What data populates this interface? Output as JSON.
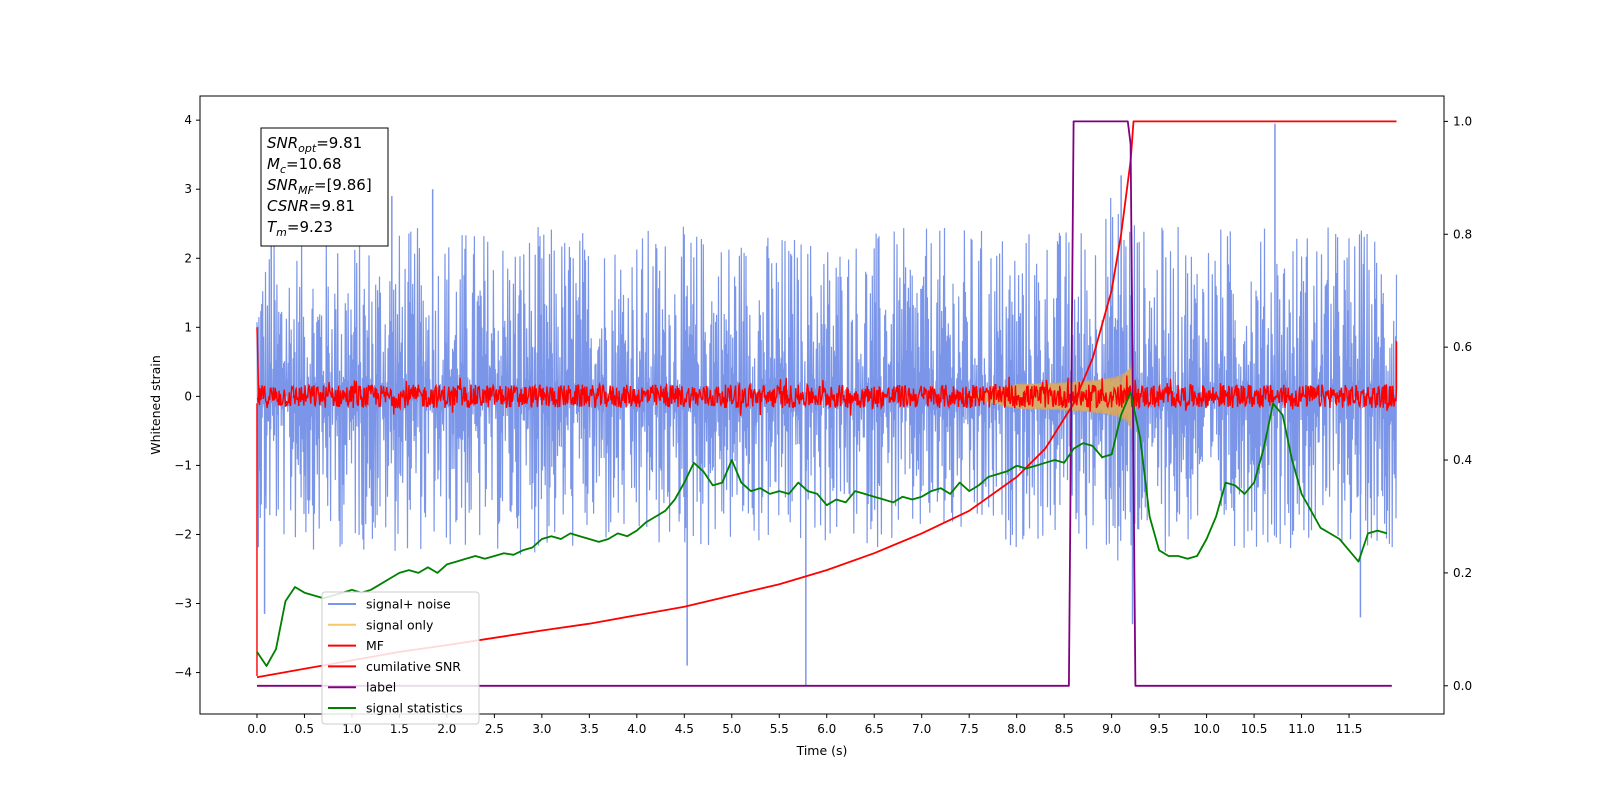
{
  "chart_data": {
    "type": "line",
    "xlabel": "Time (s)",
    "ylabel": "Whitened strain",
    "xlim": [
      -0.6,
      12.5
    ],
    "ylim": [
      -4.6,
      4.35
    ],
    "y2lim": [
      -0.05,
      1.045
    ],
    "xticks": [
      0.0,
      0.5,
      1.0,
      1.5,
      2.0,
      2.5,
      3.0,
      3.5,
      4.0,
      4.5,
      5.0,
      5.5,
      6.0,
      6.5,
      7.0,
      7.5,
      8.0,
      8.5,
      9.0,
      9.5,
      10.0,
      10.5,
      11.0,
      11.5
    ],
    "xtick_labels": [
      "0.0",
      "0.5",
      "1.0",
      "1.5",
      "2.0",
      "2.5",
      "3.0",
      "3.5",
      "4.0",
      "4.5",
      "5.0",
      "5.5",
      "6.0",
      "6.5",
      "7.0",
      "7.5",
      "8.0",
      "8.5",
      "9.0",
      "9.5",
      "10.0",
      "10.5",
      "11.0",
      "11.5"
    ],
    "yticks": [
      -4,
      -3,
      -2,
      -1,
      0,
      1,
      2,
      3,
      4
    ],
    "ytick_labels": [
      "−4",
      "−3",
      "−2",
      "−1",
      "0",
      "1",
      "2",
      "3",
      "4"
    ],
    "y2ticks": [
      0.0,
      0.2,
      0.4,
      0.6,
      0.8,
      1.0
    ],
    "y2tick_labels": [
      "0.0",
      "0.2",
      "0.4",
      "0.6",
      "0.8",
      "1.0"
    ],
    "legend_position": "lower-left",
    "grid": false,
    "annotation": {
      "lines": [
        {
          "base": "SNR",
          "sub": "opt",
          "value": "=9.81"
        },
        {
          "base": "M",
          "sub": "c",
          "value": "=10.68"
        },
        {
          "base": "SNR",
          "sub": "MF",
          "value": "=[9.86]"
        },
        {
          "base": "CSNR",
          "sub": "",
          "value": "=9.81"
        },
        {
          "base": "T",
          "sub": "m",
          "value": "=9.23"
        }
      ]
    },
    "series": [
      {
        "name": "signal+ noise",
        "axis": "left",
        "style": "noise",
        "color": "#7b96e8",
        "duration": 12.0,
        "envelope": {
          "x": [
            0,
            2,
            4,
            6,
            8,
            8.6,
            9.0,
            9.2,
            9.3,
            10,
            12
          ],
          "lo": [
            -2.2,
            -2.3,
            -2.3,
            -2.2,
            -2.2,
            -2.2,
            -2.4,
            -3.2,
            -2.3,
            -2.2,
            -2.2
          ],
          "hi": [
            2.3,
            2.5,
            2.5,
            2.4,
            2.5,
            2.5,
            3.0,
            3.3,
            2.5,
            2.5,
            2.5
          ]
        },
        "peaks": [
          {
            "x": 0.08,
            "y": -3.15
          },
          {
            "x": 0.15,
            "y": 2.9
          },
          {
            "x": 1.42,
            "y": 2.9
          },
          {
            "x": 1.85,
            "y": 3.0
          },
          {
            "x": 4.53,
            "y": -3.9
          },
          {
            "x": 5.78,
            "y": -4.2
          },
          {
            "x": 9.1,
            "y": 3.2
          },
          {
            "x": 9.22,
            "y": -3.3
          },
          {
            "x": 10.72,
            "y": 3.95
          },
          {
            "x": 11.62,
            "y": -3.2
          }
        ]
      },
      {
        "name": "signal only",
        "axis": "left",
        "style": "chirp",
        "color": "#f5c76a",
        "chirp": {
          "start": 7.4,
          "tc": 9.23,
          "max_amp": 0.75
        }
      },
      {
        "name": "MF",
        "axis": "left",
        "style": "mf",
        "color": "#ff0000",
        "amp": 0.17,
        "endpoints": [
          {
            "x": 0.0,
            "y": 1.0
          },
          {
            "x": 0.0,
            "y": -4.05
          },
          {
            "x": 12.0,
            "y": 0.8
          }
        ]
      },
      {
        "name": "cumilative SNR",
        "axis": "right",
        "style": "line",
        "color": "#ff0000",
        "x": [
          0.0,
          0.5,
          1.0,
          1.5,
          2.0,
          2.5,
          3.0,
          3.5,
          4.0,
          4.5,
          5.0,
          5.5,
          6.0,
          6.5,
          7.0,
          7.5,
          8.0,
          8.3,
          8.6,
          8.8,
          9.0,
          9.1,
          9.2,
          9.23,
          9.5,
          10.0,
          11.0,
          12.0
        ],
        "y": [
          0.015,
          0.03,
          0.045,
          0.06,
          0.072,
          0.085,
          0.098,
          0.11,
          0.125,
          0.14,
          0.16,
          0.18,
          0.205,
          0.235,
          0.27,
          0.31,
          0.37,
          0.42,
          0.5,
          0.58,
          0.7,
          0.8,
          0.93,
          1.0,
          1.0,
          1.0,
          1.0,
          1.0
        ]
      },
      {
        "name": "label",
        "axis": "right",
        "style": "line",
        "color": "#800080",
        "x": [
          0.0,
          8.55,
          8.6,
          9.17,
          9.2,
          9.25,
          11.95
        ],
        "y": [
          0.0,
          0.0,
          1.0,
          1.0,
          0.96,
          0.0,
          0.0
        ]
      },
      {
        "name": "signal statistics",
        "axis": "right",
        "style": "line",
        "color": "#008000",
        "x": [
          0.0,
          0.1,
          0.2,
          0.3,
          0.4,
          0.5,
          0.6,
          0.7,
          0.8,
          0.9,
          1.0,
          1.1,
          1.2,
          1.3,
          1.4,
          1.5,
          1.6,
          1.7,
          1.8,
          1.9,
          2.0,
          2.1,
          2.2,
          2.3,
          2.4,
          2.5,
          2.6,
          2.7,
          2.8,
          2.9,
          3.0,
          3.1,
          3.2,
          3.3,
          3.4,
          3.5,
          3.6,
          3.7,
          3.8,
          3.9,
          4.0,
          4.1,
          4.2,
          4.3,
          4.4,
          4.5,
          4.6,
          4.7,
          4.8,
          4.9,
          5.0,
          5.1,
          5.2,
          5.3,
          5.4,
          5.5,
          5.6,
          5.7,
          5.8,
          5.9,
          6.0,
          6.1,
          6.2,
          6.3,
          6.4,
          6.5,
          6.6,
          6.7,
          6.8,
          6.9,
          7.0,
          7.1,
          7.2,
          7.3,
          7.4,
          7.5,
          7.6,
          7.7,
          7.8,
          7.9,
          8.0,
          8.1,
          8.2,
          8.3,
          8.4,
          8.5,
          8.6,
          8.7,
          8.8,
          8.9,
          9.0,
          9.1,
          9.2,
          9.3,
          9.4,
          9.5,
          9.6,
          9.7,
          9.8,
          9.9,
          10.0,
          10.1,
          10.2,
          10.3,
          10.4,
          10.5,
          10.6,
          10.7,
          10.8,
          10.9,
          11.0,
          11.1,
          11.2,
          11.3,
          11.4,
          11.5,
          11.6,
          11.7,
          11.8,
          11.9
        ],
        "y": [
          0.06,
          0.035,
          0.065,
          0.15,
          0.175,
          0.165,
          0.16,
          0.155,
          0.16,
          0.165,
          0.17,
          0.165,
          0.17,
          0.18,
          0.19,
          0.2,
          0.205,
          0.2,
          0.21,
          0.2,
          0.215,
          0.22,
          0.225,
          0.23,
          0.225,
          0.23,
          0.235,
          0.232,
          0.24,
          0.245,
          0.26,
          0.265,
          0.26,
          0.27,
          0.265,
          0.26,
          0.255,
          0.26,
          0.27,
          0.265,
          0.275,
          0.29,
          0.3,
          0.31,
          0.33,
          0.36,
          0.395,
          0.38,
          0.355,
          0.36,
          0.4,
          0.36,
          0.345,
          0.35,
          0.34,
          0.345,
          0.34,
          0.36,
          0.345,
          0.34,
          0.32,
          0.33,
          0.325,
          0.345,
          0.34,
          0.335,
          0.33,
          0.325,
          0.335,
          0.33,
          0.335,
          0.345,
          0.35,
          0.34,
          0.36,
          0.345,
          0.355,
          0.37,
          0.375,
          0.38,
          0.39,
          0.385,
          0.39,
          0.395,
          0.4,
          0.395,
          0.42,
          0.43,
          0.425,
          0.405,
          0.41,
          0.48,
          0.52,
          0.44,
          0.3,
          0.24,
          0.23,
          0.23,
          0.225,
          0.23,
          0.26,
          0.3,
          0.36,
          0.355,
          0.34,
          0.36,
          0.42,
          0.5,
          0.48,
          0.4,
          0.34,
          0.31,
          0.28,
          0.27,
          0.26,
          0.24,
          0.22,
          0.27,
          0.275,
          0.27
        ]
      }
    ]
  }
}
